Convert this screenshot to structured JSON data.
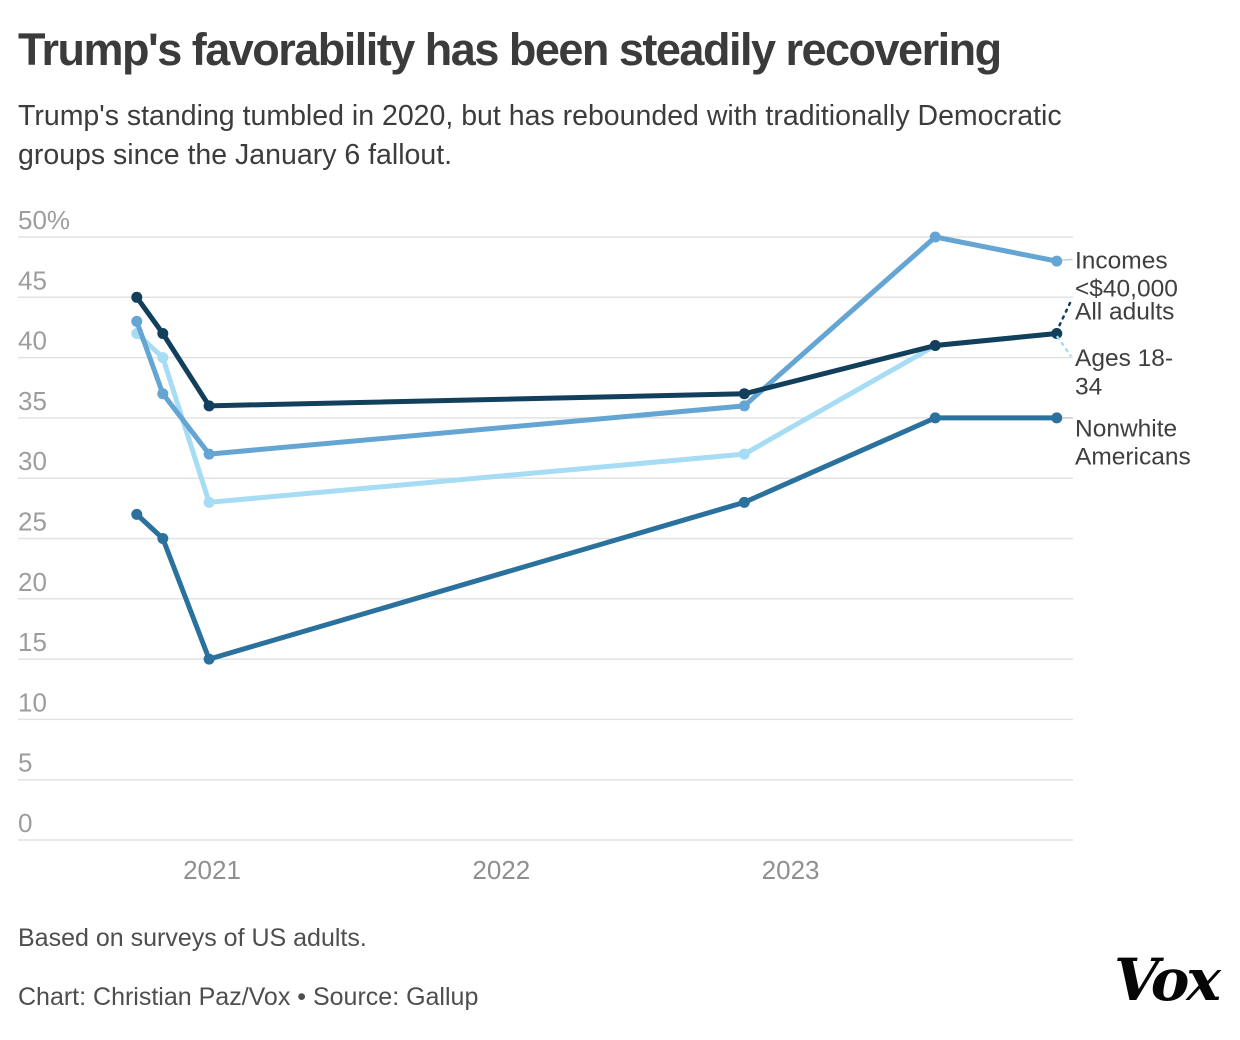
{
  "header": {
    "title": "Trump's favorability has been steadily recovering",
    "subtitle_lines": [
      "Trump's standing tumbled in 2020, but has rebounded with traditionally Democratic",
      "groups since the January 6 fallout."
    ]
  },
  "chart_data": {
    "type": "line",
    "unit": "%",
    "x": [
      2020.74,
      2020.83,
      2020.99,
      2022.84,
      2023.5,
      2023.92
    ],
    "x_ticks": [
      {
        "value": 2021,
        "label": "2021"
      },
      {
        "value": 2022,
        "label": "2022"
      },
      {
        "value": 2023,
        "label": "2023"
      }
    ],
    "y_ticks": [
      {
        "value": 50,
        "label": "50%"
      },
      {
        "value": 45,
        "label": "45"
      },
      {
        "value": 40,
        "label": "40"
      },
      {
        "value": 35,
        "label": "35"
      },
      {
        "value": 30,
        "label": "30"
      },
      {
        "value": 25,
        "label": "25"
      },
      {
        "value": 20,
        "label": "20"
      },
      {
        "value": 15,
        "label": "15"
      },
      {
        "value": 10,
        "label": "10"
      },
      {
        "value": 5,
        "label": "5"
      },
      {
        "value": 0,
        "label": "0"
      }
    ],
    "ylim": [
      0,
      50
    ],
    "grid": "horizontal",
    "legend_position": "right-edge-annotations",
    "series": [
      {
        "name": "Ages 18-34",
        "label_lines": [
          "Ages 18-",
          "34"
        ],
        "color": "#a6dcf4",
        "leader_style": "dashed",
        "values": [
          42,
          40,
          28,
          32,
          41,
          42
        ]
      },
      {
        "name": "Incomes <$40,000",
        "label_lines": [
          "Incomes",
          "<$40,000"
        ],
        "color": "#64a5d3",
        "leader_style": "solid",
        "values": [
          43,
          37,
          32,
          36,
          50,
          48
        ]
      },
      {
        "name": "Nonwhite Americans",
        "label_lines": [
          "Nonwhite",
          "Americans"
        ],
        "color": "#2b719d",
        "leader_style": "solid",
        "values": [
          27,
          25,
          15,
          28,
          35,
          35
        ]
      },
      {
        "name": "All adults",
        "label_lines": [
          "All adults"
        ],
        "color": "#123f5b",
        "leader_style": "dashed",
        "values": [
          45,
          42,
          36,
          37,
          41,
          42
        ]
      }
    ]
  },
  "footer": {
    "note": "Based on surveys of US adults.",
    "credit": "Chart: Christian Paz/Vox • Source: Gallup",
    "logo_text": "Vox"
  },
  "colors": {
    "background": "#ffffff",
    "grid": "#e2e2e2",
    "y_tick_text": "#9d9d9d",
    "x_tick_text": "#8f8f8f",
    "legend_text": "#3f3f3f",
    "leader_gray": "#cccccc"
  }
}
